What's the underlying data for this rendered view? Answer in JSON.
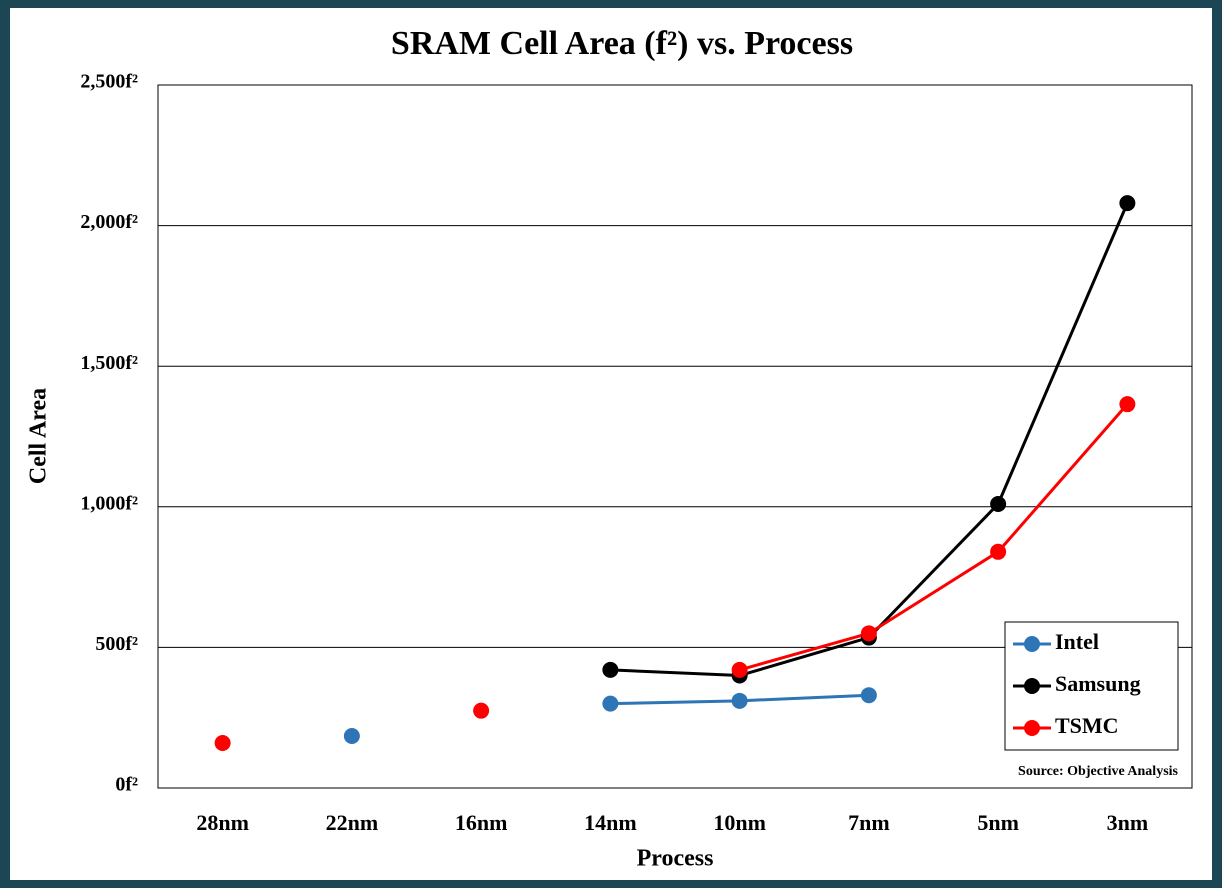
{
  "chart_data": {
    "type": "line",
    "title": "SRAM Cell Area (f²) vs. Process",
    "x_label": "Process",
    "y_label": "Cell Area",
    "source": "Source: Objective Analysis",
    "categories": [
      "28nm",
      "22nm",
      "16nm",
      "14nm",
      "10nm",
      "7nm",
      "5nm",
      "3nm"
    ],
    "series": [
      {
        "name": "Intel",
        "color": "#2e75b6",
        "values": [
          null,
          185,
          null,
          300,
          310,
          330,
          null,
          null
        ]
      },
      {
        "name": "Samsung",
        "color": "#000000",
        "values": [
          null,
          null,
          null,
          420,
          400,
          535,
          1010,
          2080
        ]
      },
      {
        "name": "TSMC",
        "color": "#ff0000",
        "values": [
          160,
          null,
          275,
          null,
          420,
          550,
          840,
          1365
        ]
      }
    ],
    "ylim": [
      0,
      2500
    ],
    "yticks": [
      {
        "value": 0,
        "label": "0f²"
      },
      {
        "value": 500,
        "label": "500f²"
      },
      {
        "value": 1000,
        "label": "1,000f²"
      },
      {
        "value": 1500,
        "label": "1,500f²"
      },
      {
        "value": 2000,
        "label": "2,000f²"
      },
      {
        "value": 2500,
        "label": "2,500f²"
      }
    ],
    "grid": true,
    "legend": "lower right"
  }
}
